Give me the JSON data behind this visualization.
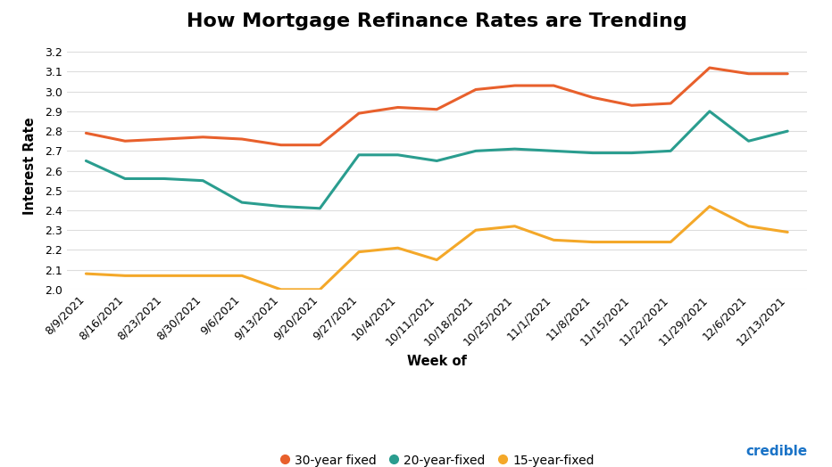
{
  "title": "How Mortgage Refinance Rates are Trending",
  "xlabel": "Week of",
  "ylabel": "Interest Rate",
  "categories": [
    "8/9/2021",
    "8/16/2021",
    "8/23/2021",
    "8/30/2021",
    "9/6/2021",
    "9/13/2021",
    "9/20/2021",
    "9/27/2021",
    "10/4/2021",
    "10/11/2021",
    "10/18/2021",
    "10/25/2021",
    "11/1/2021",
    "11/8/2021",
    "11/15/2021",
    "11/22/2021",
    "11/29/2021",
    "12/6/2021",
    "12/13/2021"
  ],
  "series": {
    "30-year fixed": {
      "values": [
        2.79,
        2.75,
        2.76,
        2.77,
        2.76,
        2.73,
        2.73,
        2.89,
        2.92,
        2.91,
        3.01,
        3.03,
        3.03,
        2.97,
        2.93,
        2.94,
        3.12,
        3.09,
        3.09
      ],
      "color": "#E8602C"
    },
    "20-year-fixed": {
      "values": [
        2.65,
        2.56,
        2.56,
        2.55,
        2.44,
        2.42,
        2.41,
        2.68,
        2.68,
        2.65,
        2.7,
        2.71,
        2.7,
        2.69,
        2.69,
        2.7,
        2.9,
        2.75,
        2.8
      ],
      "color": "#2A9D8F"
    },
    "15-year-fixed": {
      "values": [
        2.08,
        2.07,
        2.07,
        2.07,
        2.07,
        2.0,
        2.0,
        2.19,
        2.21,
        2.15,
        2.3,
        2.32,
        2.25,
        2.24,
        2.24,
        2.24,
        2.42,
        2.32,
        2.29
      ],
      "color": "#F4A829"
    }
  },
  "ylim": [
    2.0,
    3.25
  ],
  "yticks": [
    2.0,
    2.1,
    2.2,
    2.3,
    2.4,
    2.5,
    2.6,
    2.7,
    2.8,
    2.9,
    3.0,
    3.1,
    3.2
  ],
  "background_color": "#ffffff",
  "grid_color": "#dddddd",
  "title_fontsize": 16,
  "axis_label_fontsize": 10.5,
  "tick_fontsize": 9,
  "legend_fontsize": 10,
  "line_width": 2.2,
  "credible_color": "#1a73c7"
}
